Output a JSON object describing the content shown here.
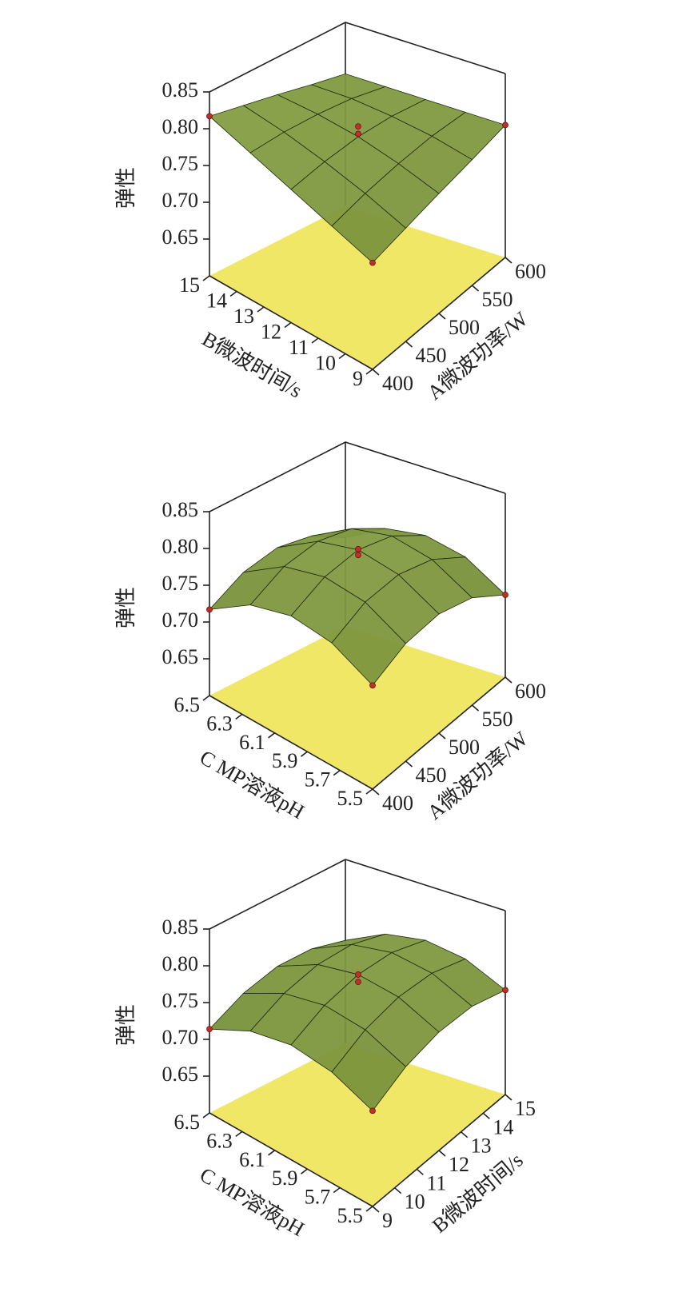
{
  "chart_data": [
    {
      "type": "surface",
      "zlabel": "弹性",
      "xlabel": "A微波功率/W",
      "ylabel": "B微波时间/s",
      "x": [
        400,
        450,
        500,
        550,
        600
      ],
      "y": [
        9,
        10.5,
        12,
        13.5,
        15
      ],
      "z": [
        [
          0.745,
          0.763,
          0.781,
          0.799,
          0.817
        ],
        [
          0.754,
          0.773,
          0.788,
          0.8,
          0.808
        ],
        [
          0.763,
          0.779,
          0.791,
          0.797,
          0.799
        ],
        [
          0.771,
          0.782,
          0.788,
          0.791,
          0.789
        ],
        [
          0.78,
          0.78,
          0.78,
          0.78,
          0.78
        ]
      ],
      "points": {
        "x": [
          400,
          400,
          600,
          500,
          500
        ],
        "y": [
          9,
          15,
          9,
          12,
          12
        ],
        "z": [
          0.745,
          0.817,
          0.78,
          0.805,
          0.795
        ]
      },
      "xlim": [
        400,
        600
      ],
      "xticks": [
        400,
        450,
        500,
        550,
        600
      ],
      "ylim": [
        9,
        15
      ],
      "yticks": [
        9,
        10,
        11,
        12,
        13,
        14,
        15
      ],
      "zlim": [
        0.6,
        0.85
      ],
      "zticks": [
        0.65,
        {
          "value": 0.7,
          "label": "0.70"
        },
        0.75,
        {
          "value": 0.8,
          "label": "0.80"
        },
        0.85
      ],
      "surface_color": "#8ea448",
      "floor_color": "#efe765",
      "point_color": "#c0302a"
    },
    {
      "type": "surface",
      "zlabel": "弹性",
      "xlabel": "A微波功率/W",
      "ylabel": "C MP溶液pH",
      "x": [
        400,
        450,
        500,
        550,
        600
      ],
      "y": [
        5.5,
        5.75,
        6,
        6.25,
        6.5
      ],
      "z": [
        [
          0.741,
          0.767,
          0.772,
          0.755,
          0.717
        ],
        [
          0.76,
          0.788,
          0.794,
          0.78,
          0.744
        ],
        [
          0.762,
          0.791,
          0.8,
          0.787,
          0.754
        ],
        [
          0.746,
          0.777,
          0.788,
          0.777,
          0.746
        ],
        [
          0.712,
          0.746,
          0.758,
          0.75,
          0.72
        ]
      ],
      "points": {
        "x": [
          400,
          400,
          600,
          500,
          500
        ],
        "y": [
          5.5,
          6.5,
          5.5,
          6,
          6
        ],
        "z": [
          0.741,
          0.717,
          0.712,
          0.801,
          0.793
        ]
      },
      "xlim": [
        400,
        600
      ],
      "xticks": [
        400,
        450,
        500,
        550,
        600
      ],
      "ylim": [
        5.5,
        6.5
      ],
      "yticks": [
        5.5,
        5.7,
        5.9,
        6.1,
        6.3,
        6.5
      ],
      "zlim": [
        0.6,
        0.85
      ],
      "zticks": [
        0.65,
        {
          "value": 0.7,
          "label": "0.70"
        },
        0.75,
        {
          "value": 0.8,
          "label": "0.80"
        },
        0.85
      ],
      "surface_color": "#8ea448",
      "floor_color": "#efe765",
      "point_color": "#c0302a"
    },
    {
      "type": "surface",
      "zlabel": "弹性",
      "xlabel": "B微波时间/s",
      "ylabel": "C MP溶液pH",
      "x": [
        9,
        10.5,
        12,
        13.5,
        15
      ],
      "y": [
        5.5,
        5.75,
        6,
        6.25,
        6.5
      ],
      "z": [
        [
          0.73,
          0.751,
          0.756,
          0.743,
          0.714
        ],
        [
          0.752,
          0.774,
          0.779,
          0.767,
          0.739
        ],
        [
          0.761,
          0.784,
          0.79,
          0.779,
          0.752
        ],
        [
          0.758,
          0.782,
          0.789,
          0.779,
          0.752
        ],
        [
          0.742,
          0.767,
          0.775,
          0.766,
          0.74
        ]
      ],
      "points": {
        "x": [
          9,
          9,
          15,
          12,
          12
        ],
        "y": [
          5.5,
          6.5,
          5.5,
          6,
          6
        ],
        "z": [
          0.73,
          0.714,
          0.742,
          0.79,
          0.78
        ]
      },
      "xlim": [
        9,
        15
      ],
      "xticks": [
        9,
        10,
        11,
        12,
        13,
        14,
        15
      ],
      "ylim": [
        5.5,
        6.5
      ],
      "yticks": [
        5.5,
        5.7,
        5.9,
        6.1,
        6.3,
        6.5
      ],
      "zlim": [
        0.6,
        0.85
      ],
      "zticks": [
        0.65,
        {
          "value": 0.7,
          "label": "0.70"
        },
        0.75,
        {
          "value": 0.8,
          "label": "0.80"
        },
        0.85
      ],
      "surface_color": "#8ea448",
      "floor_color": "#efe765",
      "point_color": "#c0302a"
    }
  ]
}
